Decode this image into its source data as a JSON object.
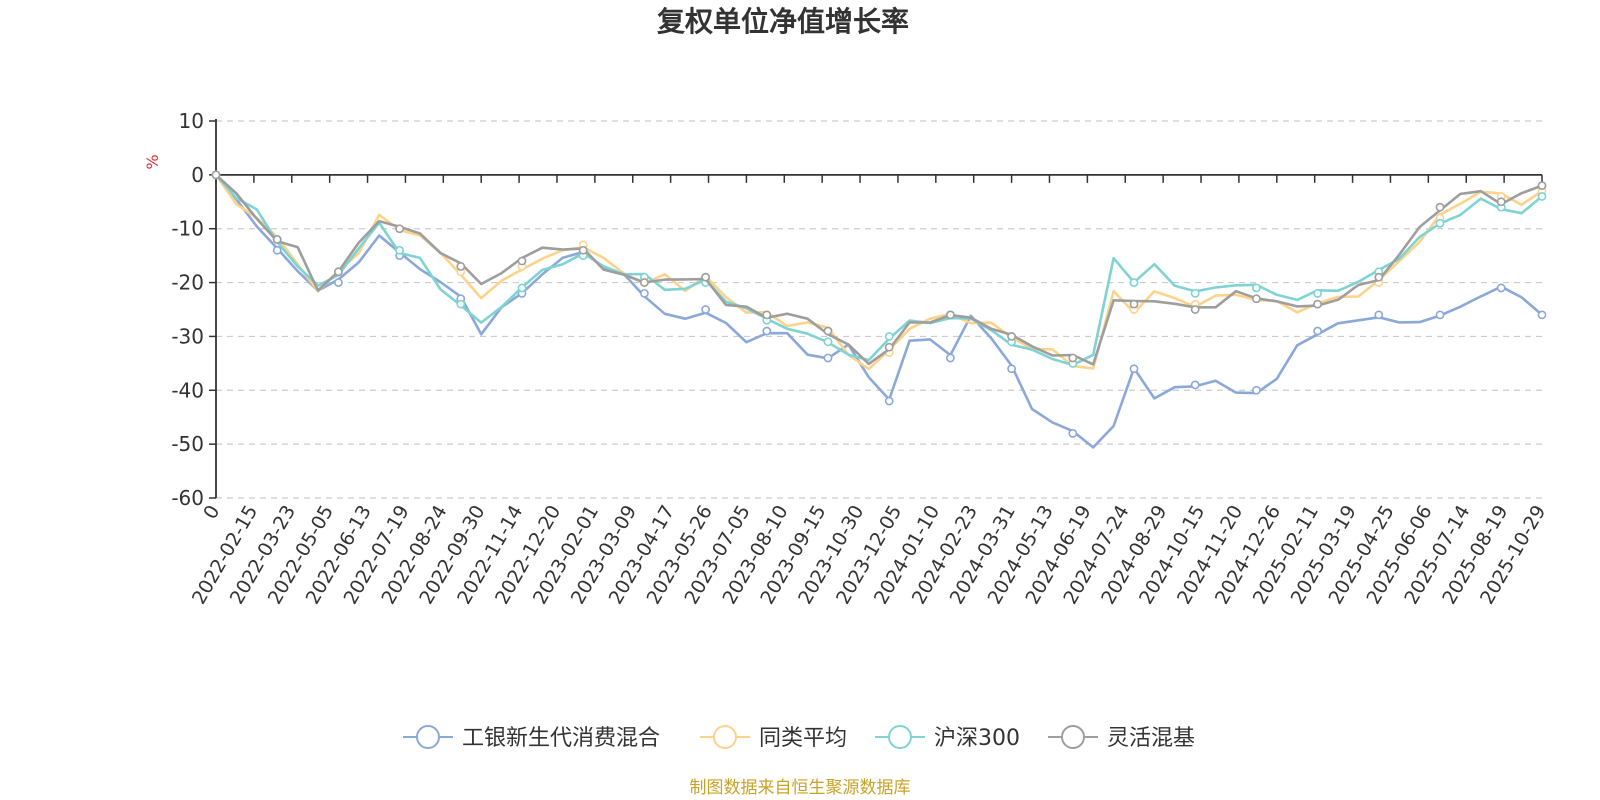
{
  "chart_data": {
    "type": "line",
    "title": "复权单位净值增长率",
    "ylabel": "%",
    "ylim": [
      -60,
      10
    ],
    "yticks": [
      "10",
      "0",
      "-10",
      "-20",
      "-30",
      "-40",
      "-50",
      "-60"
    ],
    "x_tick_labels": [
      "0",
      "2022-02-15",
      "2022-03-23",
      "2022-05-05",
      "2022-06-13",
      "2022-07-19",
      "2022-08-24",
      "2022-09-30",
      "2022-11-14",
      "2022-12-20",
      "2023-02-01",
      "2023-03-09",
      "2023-04-17",
      "2023-05-26",
      "2023-07-05",
      "2023-08-10",
      "2023-09-15",
      "2023-10-30",
      "2023-12-05",
      "2024-01-10",
      "2024-02-23",
      "2024-03-31",
      "2024-05-13",
      "2024-06-19",
      "2024-07-24",
      "2024-08-29",
      "2024-10-15",
      "2024-11-20",
      "2024-12-26",
      "2025-02-11",
      "2025-03-19",
      "2025-04-25",
      "2025-06-06",
      "2025-07-14",
      "2025-08-19",
      "2025-10-29"
    ],
    "grid": true,
    "legend_position": "bottom",
    "series": [
      {
        "name": "工银新生代消费混合",
        "color": "#8ba8da",
        "values": [
          0,
          -5,
          -9,
          -14,
          -18,
          -21,
          -20,
          -16,
          -11,
          -15,
          -17,
          -20,
          -23,
          -29,
          -25,
          -22,
          -18,
          -16,
          -14,
          -17,
          -19,
          -22,
          -26,
          -27,
          -25,
          -28,
          -31,
          -29,
          -30,
          -33,
          -34,
          -32,
          -37,
          -42,
          -31,
          -30,
          -34,
          -26,
          -30,
          -36,
          -43,
          -46,
          -48,
          -50,
          -47,
          -36,
          -41,
          -40,
          -39,
          -38,
          -41,
          -40,
          -38,
          -32,
          -29,
          -28,
          -27,
          -26,
          -28,
          -27,
          -26,
          -25,
          -22,
          -21,
          -23,
          -26
        ]
      },
      {
        "name": "同类平均",
        "color": "#fcd38a",
        "values": [
          0,
          -5,
          -8,
          -12,
          -16,
          -22,
          -18,
          -14,
          -8,
          -10,
          -11,
          -15,
          -18,
          -23,
          -20,
          -17,
          -16,
          -14,
          -13,
          -16,
          -18,
          -20,
          -19,
          -21,
          -19,
          -23,
          -25,
          -26,
          -28,
          -27,
          -29,
          -33,
          -36,
          -33,
          -28,
          -27,
          -26,
          -27,
          -28,
          -30,
          -32,
          -33,
          -35,
          -36,
          -22,
          -25,
          -22,
          -23,
          -24,
          -23,
          -22,
          -23,
          -24,
          -25,
          -24,
          -23,
          -22,
          -20,
          -16,
          -12,
          -8,
          -5,
          -3,
          -4,
          -5,
          -3
        ]
      },
      {
        "name": "沪深300",
        "color": "#7fd3d3",
        "values": [
          0,
          -4,
          -7,
          -12,
          -17,
          -21,
          -18,
          -14,
          -9,
          -14,
          -16,
          -21,
          -24,
          -28,
          -24,
          -21,
          -18,
          -16,
          -15,
          -17,
          -18,
          -19,
          -21,
          -21,
          -20,
          -23,
          -25,
          -27,
          -28,
          -30,
          -31,
          -33,
          -35,
          -30,
          -27,
          -28,
          -26,
          -27,
          -29,
          -31,
          -33,
          -34,
          -35,
          -34,
          -15,
          -20,
          -17,
          -20,
          -22,
          -21,
          -20,
          -21,
          -22,
          -23,
          -22,
          -21,
          -20,
          -18,
          -15,
          -12,
          -9,
          -7,
          -5,
          -6,
          -7,
          -4
        ]
      },
      {
        "name": "灵活混基",
        "color": "#9e9e9e",
        "values": [
          0,
          -4,
          -8,
          -12,
          -14,
          -21,
          -18,
          -13,
          -8,
          -10,
          -11,
          -14,
          -17,
          -20,
          -18,
          -16,
          -13,
          -14,
          -14,
          -17,
          -19,
          -20,
          -19,
          -20,
          -19,
          -24,
          -25,
          -26,
          -26,
          -27,
          -29,
          -32,
          -35,
          -32,
          -28,
          -27,
          -26,
          -27,
          -28,
          -30,
          -32,
          -33,
          -34,
          -35,
          -23,
          -24,
          -23,
          -24,
          -25,
          -24,
          -22,
          -23,
          -23,
          -25,
          -24,
          -23,
          -21,
          -19,
          -15,
          -10,
          -6,
          -4,
          -3,
          -5,
          -4,
          -2
        ]
      }
    ]
  },
  "source_note": "制图数据来自恒生聚源数据库"
}
